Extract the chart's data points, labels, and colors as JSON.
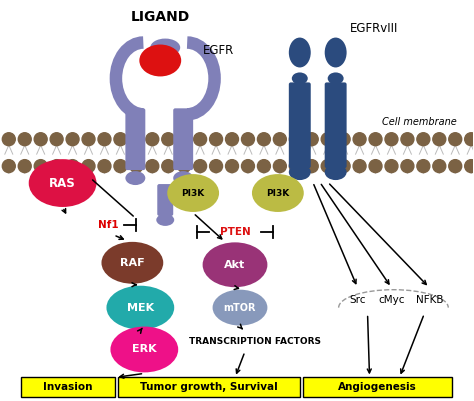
{
  "background_color": "#ffffff",
  "egfr_color": "#8080B8",
  "egfrviii_color": "#2B4B7E",
  "ligand_color": "#DD1111",
  "ras_color": "#DD1144",
  "raf_color": "#7B3B2B",
  "mek_color": "#22AAAA",
  "erk_color": "#EE1188",
  "pi3k_color": "#BBBB44",
  "pten_color": "#DD1111",
  "akt_color": "#993377",
  "mtor_color": "#8899BB",
  "membrane_color": "#7B6244",
  "nf1_color": "#DD0000",
  "yellow_box": "#FFFF00",
  "labels": {
    "ligand": "LIGAND",
    "egfr": "EGFR",
    "egfrviii": "EGFRvIII",
    "cell_membrane": "Cell membrane",
    "ras": "RAS",
    "nf1": "Nf1",
    "raf": "RAF",
    "mek": "MEK",
    "erk": "ERK",
    "pi3k": "PI3K",
    "pten": "PTEN",
    "akt": "Akt",
    "mtor": "mTOR",
    "src": "Src",
    "cmyc": "cMyc",
    "nfkb": "NFKB",
    "tf": "TRANSCRIPTION FACTORS",
    "invasion": "Invasion",
    "tumor": "Tumor growth, Survival",
    "angio": "Angiogenesis"
  }
}
